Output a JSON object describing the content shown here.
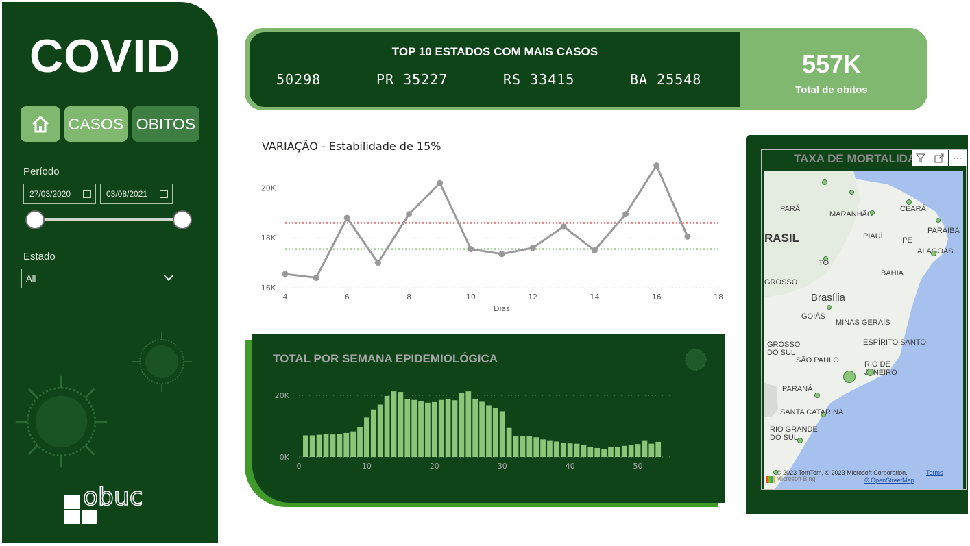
{
  "sidebar": {
    "title": "COVID",
    "nav": {
      "home_icon": "home-icon",
      "casos_label": "CASOS",
      "obitos_label": "OBITOS"
    },
    "period_label": "Período",
    "date_start": "27/03/2020",
    "date_end": "03/08/2021",
    "state_label": "Estado",
    "state_value": "All",
    "brand_text": "obuc"
  },
  "banner": {
    "title": "TOP 10 ESTADOS COM MAIS CASOS",
    "states": [
      {
        "text": "50298"
      },
      {
        "text": "PR 35227"
      },
      {
        "text": "RS 33415"
      },
      {
        "text": "BA 25548"
      }
    ],
    "kpi_value": "557K",
    "kpi_label": "Total de obitos"
  },
  "line_chart": {
    "title": "VARIAÇÃO - Estabilidade de 15%",
    "xlabel": "Dias",
    "ytick_labels": [
      "20K",
      "18K",
      "16K"
    ],
    "xtick_labels": [
      "4",
      "6",
      "8",
      "10",
      "12",
      "14",
      "16",
      "18"
    ]
  },
  "bar_chart": {
    "title": "TOTAL POR SEMANA EPIDEMIOLÓGICA",
    "ytick_labels": [
      "20K",
      "0K"
    ],
    "xtick_labels": [
      "0",
      "10",
      "20",
      "30",
      "40",
      "50"
    ]
  },
  "map": {
    "title": "TAXA DE MORTALIDADE",
    "labels": [
      "PARÁ",
      "MARANHÃO",
      "CEARÁ",
      "PIAUÍ",
      "PE",
      "PARAÍBA",
      "ALAGOAS",
      "RASIL",
      "TO",
      "BAHIA",
      "GROSSO",
      "Brasília",
      "GOIÁS",
      "MINAS GERAIS",
      "GROSSO DO SUL",
      "ESPÍRITO SANTO",
      "SÃO PAULO",
      "RIO DE JANEIRO",
      "PARANÁ",
      "SANTA CATARINA",
      "RIO GRANDE DO SUL"
    ],
    "attribution": "© 2023 TomTom, © 2023 Microsoft Corporation,",
    "terms": "Terms",
    "osm": "© OpenStreetMap",
    "bing": "Microsoft Bing"
  },
  "chart_data": [
    {
      "type": "line",
      "title": "VARIAÇÃO - Estabilidade de 15%",
      "xlabel": "Dias",
      "ylabel": "",
      "x": [
        4,
        5,
        6,
        7,
        8,
        9,
        10,
        11,
        12,
        13,
        14,
        15,
        16,
        17
      ],
      "y": [
        16550,
        16400,
        18800,
        17000,
        18950,
        20200,
        17550,
        17350,
        17600,
        18450,
        17500,
        18950,
        20900,
        18050
      ],
      "reference_lines": [
        {
          "value": 18600,
          "color": "#f07b7b",
          "style": "dotted"
        },
        {
          "value": 17550,
          "color": "#a8d39a",
          "style": "dotted"
        }
      ],
      "xlim": [
        4,
        18
      ],
      "ylim": [
        16000,
        21000
      ],
      "yticks": [
        16000,
        18000,
        20000
      ],
      "color": "#999999"
    },
    {
      "type": "bar",
      "title": "TOTAL POR SEMANA EPIDEMIOLÓGICA",
      "x": [
        1,
        2,
        3,
        4,
        5,
        6,
        7,
        8,
        9,
        10,
        11,
        12,
        13,
        14,
        15,
        16,
        17,
        18,
        19,
        20,
        21,
        22,
        23,
        24,
        25,
        26,
        27,
        28,
        29,
        30,
        31,
        32,
        33,
        34,
        35,
        36,
        37,
        38,
        39,
        40,
        41,
        42,
        43,
        44,
        45,
        46,
        47,
        48,
        49,
        50,
        51,
        52,
        53
      ],
      "values": [
        7000,
        7000,
        7200,
        7400,
        7300,
        7400,
        7800,
        8300,
        9700,
        12800,
        15400,
        17000,
        19800,
        21300,
        21100,
        18800,
        18500,
        18000,
        17600,
        17800,
        18500,
        18900,
        18400,
        20900,
        21300,
        18900,
        17900,
        16800,
        15800,
        14800,
        9400,
        6800,
        6800,
        6800,
        6400,
        5700,
        5200,
        5000,
        4600,
        4400,
        4300,
        3800,
        3300,
        2900,
        2600,
        3300,
        3300,
        3600,
        3900,
        4200,
        5200,
        4300,
        4900
      ],
      "xlim": [
        0,
        55
      ],
      "ylim": [
        0,
        22000
      ],
      "yticks": [
        0,
        20000
      ],
      "color": "#8cc47a"
    }
  ],
  "colors": {
    "dark_green": "#0f4419",
    "light_green": "#7fb86e",
    "mid_green": "#3f7e42",
    "accent_green": "#3f9a2a"
  }
}
